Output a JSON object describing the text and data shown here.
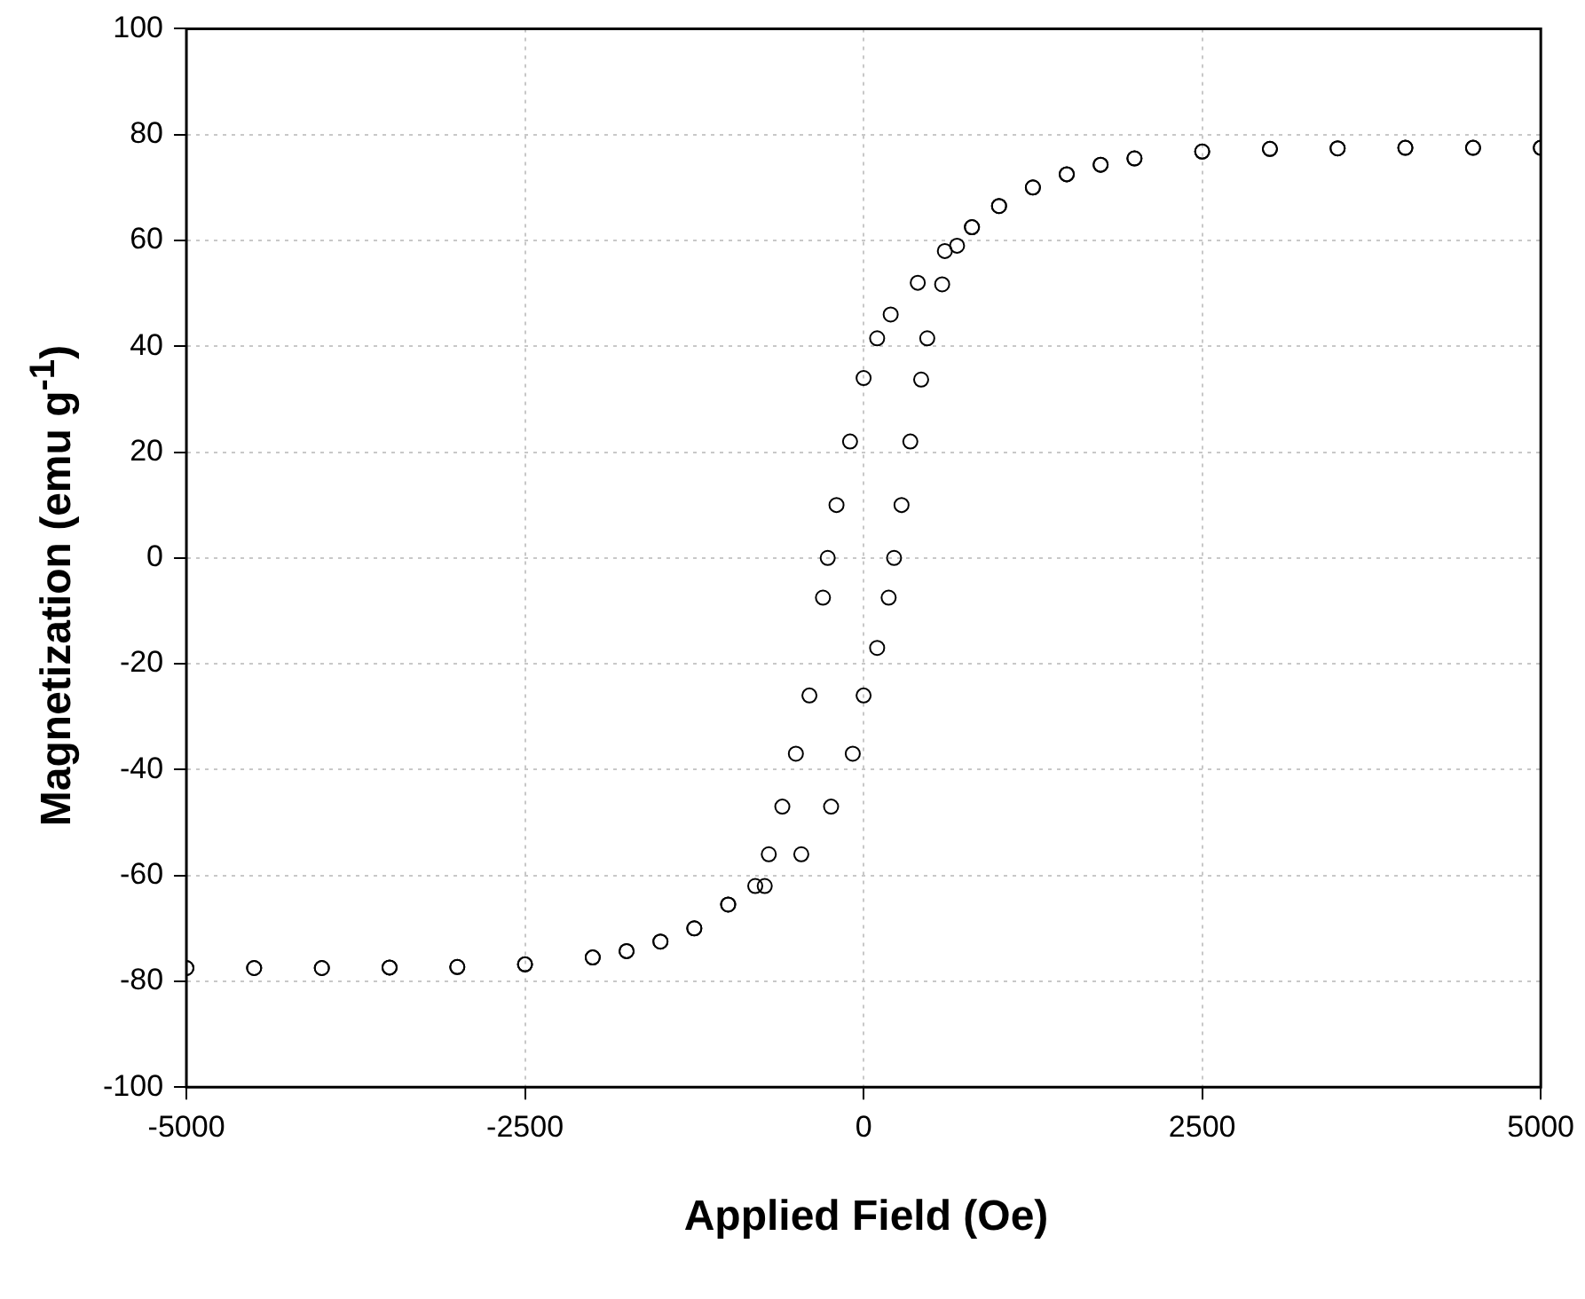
{
  "chart_data": {
    "type": "scatter",
    "xlabel": "Applied Field (Oe)",
    "ylabel": "Magnetization (emu g$^{-1}$)",
    "xlim": [
      -5000,
      5000
    ],
    "xticks": [
      -5000,
      -2500,
      0,
      2500,
      5000
    ],
    "ylim": [
      -100,
      100
    ],
    "yticks": [
      -100,
      -80,
      -60,
      -40,
      -20,
      0,
      20,
      40,
      60,
      80,
      100
    ],
    "grid": true,
    "marker": "circle",
    "legend": false,
    "series": [
      {
        "color": "#000000",
        "x": [
          5000,
          4500,
          4000,
          3500,
          3000,
          2500,
          2000,
          1750,
          1500,
          1250,
          1000,
          800,
          600,
          400,
          200,
          100,
          0,
          -100,
          -200,
          -265,
          -300,
          -400,
          -500,
          -600,
          -700,
          -800,
          -1000,
          -1250,
          -1500,
          -1750,
          -2000,
          -2500,
          -3000,
          -3500,
          -4000,
          -4500,
          -5000
        ],
        "values": [
          77.5,
          77.5,
          77.5,
          77.4,
          77.3,
          76.8,
          75.5,
          74.3,
          72.5,
          70,
          66.5,
          62.5,
          58,
          52,
          46,
          41.5,
          34,
          22,
          10,
          0,
          -7.5,
          -26,
          -37,
          -47,
          -56,
          -62,
          -65.5,
          -70,
          -72.5,
          -74.3,
          -75.5,
          -76.8,
          -77.3,
          -77.4,
          -77.5,
          -77.5,
          -77.5
        ]
      },
      {
        "color": "#000000",
        "x": [
          -5000,
          -4500,
          -4000,
          -3500,
          -3000,
          -2500,
          -2000,
          -1750,
          -1500,
          -1250,
          -1000,
          -730,
          -460,
          -240,
          -80,
          0,
          100,
          185,
          225,
          280,
          345,
          425,
          470,
          580,
          690,
          800,
          1000,
          1250,
          1500,
          1750,
          2000,
          2500,
          3000,
          3500,
          4000,
          4500,
          5000
        ],
        "values": [
          -77.5,
          -77.5,
          -77.5,
          -77.4,
          -77.3,
          -76.8,
          -75.5,
          -74.3,
          -72.5,
          -70,
          -65.5,
          -62,
          -56,
          -47,
          -37,
          -26,
          -17,
          -7.5,
          0,
          10,
          22,
          33.7,
          41.5,
          51.7,
          59,
          62.5,
          66.5,
          70,
          72.5,
          74.3,
          75.5,
          76.8,
          77.3,
          77.4,
          77.5,
          77.5,
          77.5
        ]
      }
    ]
  }
}
